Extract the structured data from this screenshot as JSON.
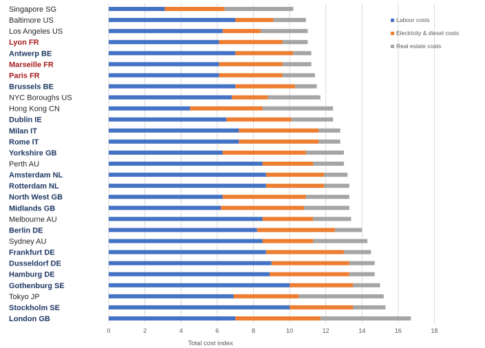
{
  "chart_data": {
    "type": "bar",
    "orientation": "horizontal",
    "stacked": true,
    "title": "",
    "xlabel": "Total cost index",
    "ylabel": "",
    "xlim": [
      0,
      18
    ],
    "xticks": [
      "0",
      "2",
      "4",
      "6",
      "8",
      "10",
      "12",
      "14",
      "16",
      "18"
    ],
    "grid": true,
    "legend_position": "top-right",
    "categories": [
      "Singapore SG",
      "Baltimore US",
      "Los Angeles US",
      "Lyon FR",
      "Antwerp BE",
      "Marseille FR",
      "Paris FR",
      "Brussels BE",
      "NYC Boroughs US",
      "Hong Kong CN",
      "Dublin IE",
      "Milan IT",
      "Rome IT",
      "Yorkshire GB",
      "Perth AU",
      "Amsterdam NL",
      "Rotterdam NL",
      "North West GB",
      "Midlands GB",
      "Melbourne AU",
      "Berlin DE",
      "Sydney AU",
      "Frankfurt DE",
      "Dusseldorf DE",
      "Hamburg DE",
      "Gothenburg SE",
      "Tokyo JP",
      "Stockholm SE",
      "London GB"
    ],
    "category_styles": [
      "normal",
      "normal",
      "normal",
      "red",
      "bold",
      "red",
      "red",
      "bold",
      "normal",
      "normal",
      "bold",
      "bold",
      "bold",
      "bold",
      "normal",
      "bold",
      "bold",
      "bold",
      "bold",
      "normal",
      "bold",
      "normal",
      "bold",
      "bold",
      "bold",
      "bold",
      "normal",
      "bold",
      "bold"
    ],
    "series": [
      {
        "name": "Labour costs",
        "color": "#4472C4",
        "values": [
          3.1,
          7.0,
          6.3,
          6.1,
          7.0,
          6.1,
          6.1,
          7.0,
          6.8,
          4.5,
          6.5,
          7.2,
          7.2,
          6.3,
          8.5,
          8.7,
          8.7,
          6.3,
          6.2,
          8.5,
          8.2,
          8.5,
          8.7,
          9.0,
          8.9,
          10.0,
          6.9,
          10.0,
          7.0
        ]
      },
      {
        "name": "Electricity & diesel costs",
        "color": "#ED7D31",
        "values": [
          3.3,
          2.1,
          2.1,
          3.5,
          3.2,
          3.5,
          3.5,
          3.3,
          2.0,
          4.0,
          3.6,
          4.4,
          4.4,
          4.6,
          2.8,
          3.2,
          3.2,
          4.6,
          4.6,
          2.8,
          4.3,
          2.8,
          4.3,
          4.3,
          4.4,
          3.5,
          3.6,
          3.5,
          4.7
        ]
      },
      {
        "name": "Real estate costs",
        "color": "#A5A5A5",
        "values": [
          3.8,
          1.8,
          2.6,
          1.4,
          1.0,
          1.6,
          1.8,
          1.2,
          2.9,
          3.9,
          2.3,
          1.2,
          1.2,
          2.1,
          1.7,
          1.3,
          1.4,
          2.4,
          2.5,
          2.1,
          1.5,
          3.0,
          1.5,
          1.4,
          1.4,
          1.5,
          4.7,
          1.8,
          5.0
        ]
      }
    ]
  }
}
